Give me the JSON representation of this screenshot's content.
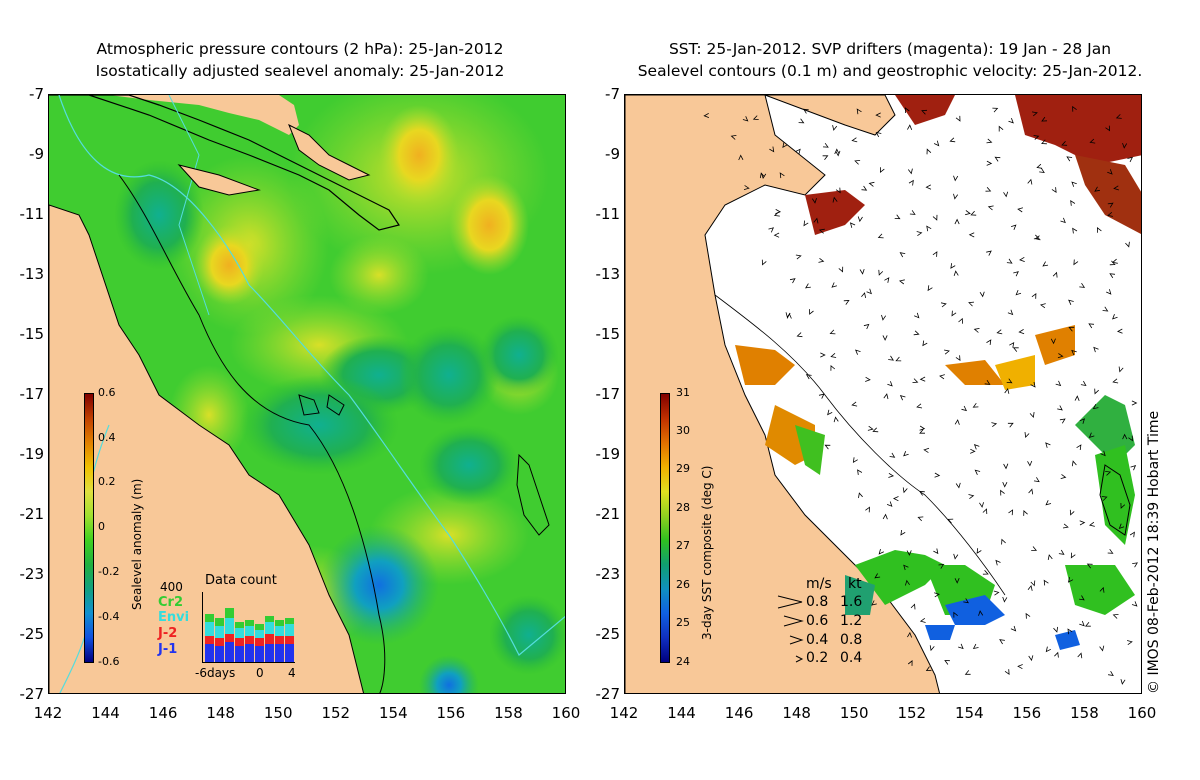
{
  "left_panel": {
    "title_line1": "Atmospheric pressure contours (2 hPa): 25-Jan-2012",
    "title_line2": "Isostatically adjusted sealevel anomaly: 25-Jan-2012",
    "colorbar": {
      "title": "Sealevel anomaly (m)",
      "ticks": [
        "0.6",
        "0.4",
        "0.2",
        "0",
        "-0.2",
        "-0.4",
        "-0.6"
      ],
      "colors": [
        "#800000",
        "#c04000",
        "#e08000",
        "#f0c000",
        "#e0e040",
        "#a0e030",
        "#40d020",
        "#20b040",
        "#10a080",
        "#1090d0",
        "#1050e0",
        "#000080"
      ]
    },
    "data_count": {
      "title": "Data count",
      "max_label": "400",
      "satellites": [
        {
          "name": "Cr2",
          "color": "#33cc33"
        },
        {
          "name": "Envi",
          "color": "#33dddd"
        },
        {
          "name": "J-2",
          "color": "#ee2222"
        },
        {
          "name": "J-1",
          "color": "#2233ee"
        }
      ],
      "x_labels": [
        "-6days",
        "0",
        "4"
      ]
    }
  },
  "right_panel": {
    "title_line1": "SST: 25-Jan-2012. SVP drifters (magenta): 19 Jan - 28 Jan",
    "title_line2": "Sealevel contours (0.1 m) and geostrophic velocity: 25-Jan-2012.",
    "colorbar": {
      "title": "3-day SST composite (deg C)",
      "ticks": [
        "31",
        "30",
        "29",
        "28",
        "27",
        "26",
        "25",
        "24"
      ],
      "colors": [
        "#800000",
        "#c03000",
        "#e07000",
        "#f0b000",
        "#e0e020",
        "#90d020",
        "#30c020",
        "#10a070",
        "#1090c0",
        "#1060e0",
        "#1030c0",
        "#000080"
      ]
    },
    "speed_legend": {
      "header_ms": "m/s",
      "header_kt": "kt",
      "rows": [
        {
          "ms": "0.8",
          "kt": "1.6"
        },
        {
          "ms": "0.6",
          "kt": "1.2"
        },
        {
          "ms": "0.4",
          "kt": "0.8"
        },
        {
          "ms": "0.2",
          "kt": "0.4"
        }
      ]
    }
  },
  "axes": {
    "latitudes": [
      "-7",
      "-9",
      "-11",
      "-13",
      "-15",
      "-17",
      "-19",
      "-21",
      "-23",
      "-25",
      "-27"
    ],
    "longitudes": [
      "142",
      "144",
      "146",
      "148",
      "150",
      "152",
      "154",
      "156",
      "158",
      "160"
    ]
  },
  "copyright": "© IMOS 08-Feb-2012 18:39 Hobart Time",
  "colors": {
    "land": "#f8c898",
    "ocean_base": "#40cc30",
    "contour_cyan": "#55dddd"
  }
}
